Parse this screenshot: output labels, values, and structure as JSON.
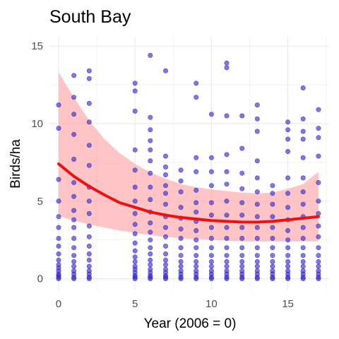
{
  "chart_data": {
    "type": "scatter",
    "title": "South Bay",
    "xlabel": "Year (2006 = 0)",
    "ylabel": "Birds/ha",
    "xlim": [
      -0.6,
      17.7
    ],
    "ylim": [
      -0.7,
      15.6
    ],
    "x_ticks": [
      0,
      5,
      10,
      15
    ],
    "y_ticks": [
      0,
      5,
      10,
      15
    ],
    "grid": true,
    "legend": "none",
    "colors": {
      "points": "#3b2fd6",
      "points_stroke": "#2a1fb0",
      "trend": "#ee1111",
      "ribbon": "#ff9ea0",
      "grid": "#ebebeb"
    },
    "trend": {
      "x": [
        0,
        1,
        2,
        3,
        4,
        5,
        6,
        7,
        8,
        9,
        10,
        11,
        12,
        13,
        14,
        15,
        16,
        17
      ],
      "y": [
        7.4,
        6.6,
        5.95,
        5.4,
        4.9,
        4.6,
        4.3,
        4.1,
        3.95,
        3.85,
        3.75,
        3.7,
        3.65,
        3.65,
        3.7,
        3.8,
        3.9,
        4.0
      ],
      "lower": [
        4.05,
        3.75,
        3.5,
        3.3,
        3.1,
        2.95,
        2.8,
        2.7,
        2.6,
        2.55,
        2.5,
        2.45,
        2.4,
        2.4,
        2.4,
        2.4,
        2.4,
        2.4
      ],
      "upper": [
        13.3,
        11.7,
        10.2,
        9.0,
        8.1,
        7.4,
        6.85,
        6.45,
        6.1,
        5.9,
        5.75,
        5.65,
        5.55,
        5.5,
        5.55,
        5.8,
        6.1,
        6.9
      ]
    },
    "series": [
      {
        "x": 0,
        "y": [
          0.0,
          0.1,
          0.2,
          0.3,
          0.5,
          0.7,
          0.9,
          1.2,
          1.6,
          2.1,
          2.6,
          3.3,
          4.0,
          5.0,
          6.4,
          9.7,
          11.2
        ]
      },
      {
        "x": 1,
        "y": [
          0.0,
          0.1,
          0.3,
          0.5,
          0.8,
          1.1,
          1.5,
          2.0,
          2.6,
          3.3,
          3.8,
          4.4,
          5.3,
          6.2,
          7.7,
          9.3,
          10.6,
          11.7,
          13.1
        ]
      },
      {
        "x": 2,
        "y": [
          0.0,
          0.1,
          0.3,
          0.5,
          0.8,
          1.2,
          1.6,
          2.1,
          2.7,
          3.4,
          4.2,
          5.0,
          5.9,
          7.3,
          8.6,
          10.1,
          11.3,
          12.9,
          13.4
        ]
      },
      {
        "x": 5,
        "y": [
          0.0,
          0.1,
          0.2,
          0.4,
          0.6,
          0.8,
          1.1,
          1.4,
          1.8,
          2.3,
          2.9,
          3.5,
          4.2,
          5.0,
          5.9,
          7.0,
          8.3,
          10.8,
          12.1,
          12.6
        ]
      },
      {
        "x": 6,
        "y": [
          0.0,
          0.1,
          0.2,
          0.4,
          0.6,
          0.9,
          1.2,
          1.6,
          2.0,
          2.5,
          3.0,
          3.6,
          4.3,
          5.1,
          5.9,
          6.8,
          7.6,
          8.3,
          8.9,
          9.6,
          10.4,
          14.4
        ]
      },
      {
        "x": 7,
        "y": [
          0.0,
          0.1,
          0.2,
          0.4,
          0.6,
          0.9,
          1.2,
          1.6,
          2.1,
          2.7,
          3.3,
          4.0,
          4.8,
          5.5,
          6.0,
          6.7,
          7.2,
          7.9,
          13.4
        ]
      },
      {
        "x": 8,
        "y": [
          0.0,
          0.1,
          0.3,
          0.5,
          0.8,
          1.1,
          1.5,
          2.0,
          2.6,
          3.2,
          3.9,
          4.6,
          5.6,
          6.3,
          7.0
        ]
      },
      {
        "x": 9,
        "y": [
          0.0,
          0.1,
          0.3,
          0.5,
          0.8,
          1.1,
          1.5,
          2.0,
          2.5,
          3.1,
          3.7,
          4.3,
          4.9,
          5.7,
          6.9,
          7.8,
          11.7,
          12.6
        ]
      },
      {
        "x": 10,
        "y": [
          0.0,
          0.1,
          0.3,
          0.5,
          0.8,
          1.1,
          1.5,
          2.0,
          2.6,
          3.3,
          4.1,
          4.9,
          6.0,
          6.9,
          7.8,
          10.6
        ]
      },
      {
        "x": 11,
        "y": [
          0.0,
          0.1,
          0.3,
          0.5,
          0.8,
          1.1,
          1.5,
          2.0,
          2.6,
          3.3,
          4.1,
          5.0,
          6.1,
          6.9,
          8.0,
          10.5,
          13.6,
          13.9
        ]
      },
      {
        "x": 12,
        "y": [
          0.0,
          0.1,
          0.3,
          0.5,
          0.8,
          1.1,
          1.5,
          2.0,
          2.6,
          3.3,
          4.1,
          4.9,
          5.8,
          6.8,
          8.4,
          10.5
        ]
      },
      {
        "x": 13,
        "y": [
          0.0,
          0.1,
          0.3,
          0.5,
          0.8,
          1.1,
          1.5,
          2.0,
          2.6,
          3.3,
          4.0,
          4.8,
          5.6,
          6.5,
          7.6,
          9.5,
          10.3,
          11.2
        ]
      },
      {
        "x": 14,
        "y": [
          0.0,
          0.1,
          0.3,
          0.5,
          0.8,
          1.1,
          1.5,
          2.0,
          2.6,
          3.3,
          4.0,
          4.8,
          5.5,
          6.0
        ]
      },
      {
        "x": 15,
        "y": [
          0.0,
          0.1,
          0.3,
          0.5,
          0.8,
          1.1,
          1.5,
          2.0,
          2.5,
          3.1,
          3.8,
          4.6,
          5.5,
          6.5,
          8.2,
          9.0,
          9.6,
          10.1
        ]
      },
      {
        "x": 16,
        "y": [
          0.0,
          0.1,
          0.3,
          0.5,
          0.8,
          1.1,
          1.5,
          2.0,
          2.6,
          3.3,
          4.0,
          4.8,
          5.6,
          6.5,
          7.8,
          9.0,
          9.5,
          10.3,
          12.3
        ]
      },
      {
        "x": 17,
        "y": [
          0.0,
          0.1,
          0.3,
          0.5,
          0.8,
          1.1,
          1.5,
          2.0,
          2.7,
          3.4,
          4.2,
          5.0,
          6.2,
          7.9,
          9.1,
          9.7,
          10.9
        ]
      }
    ]
  }
}
